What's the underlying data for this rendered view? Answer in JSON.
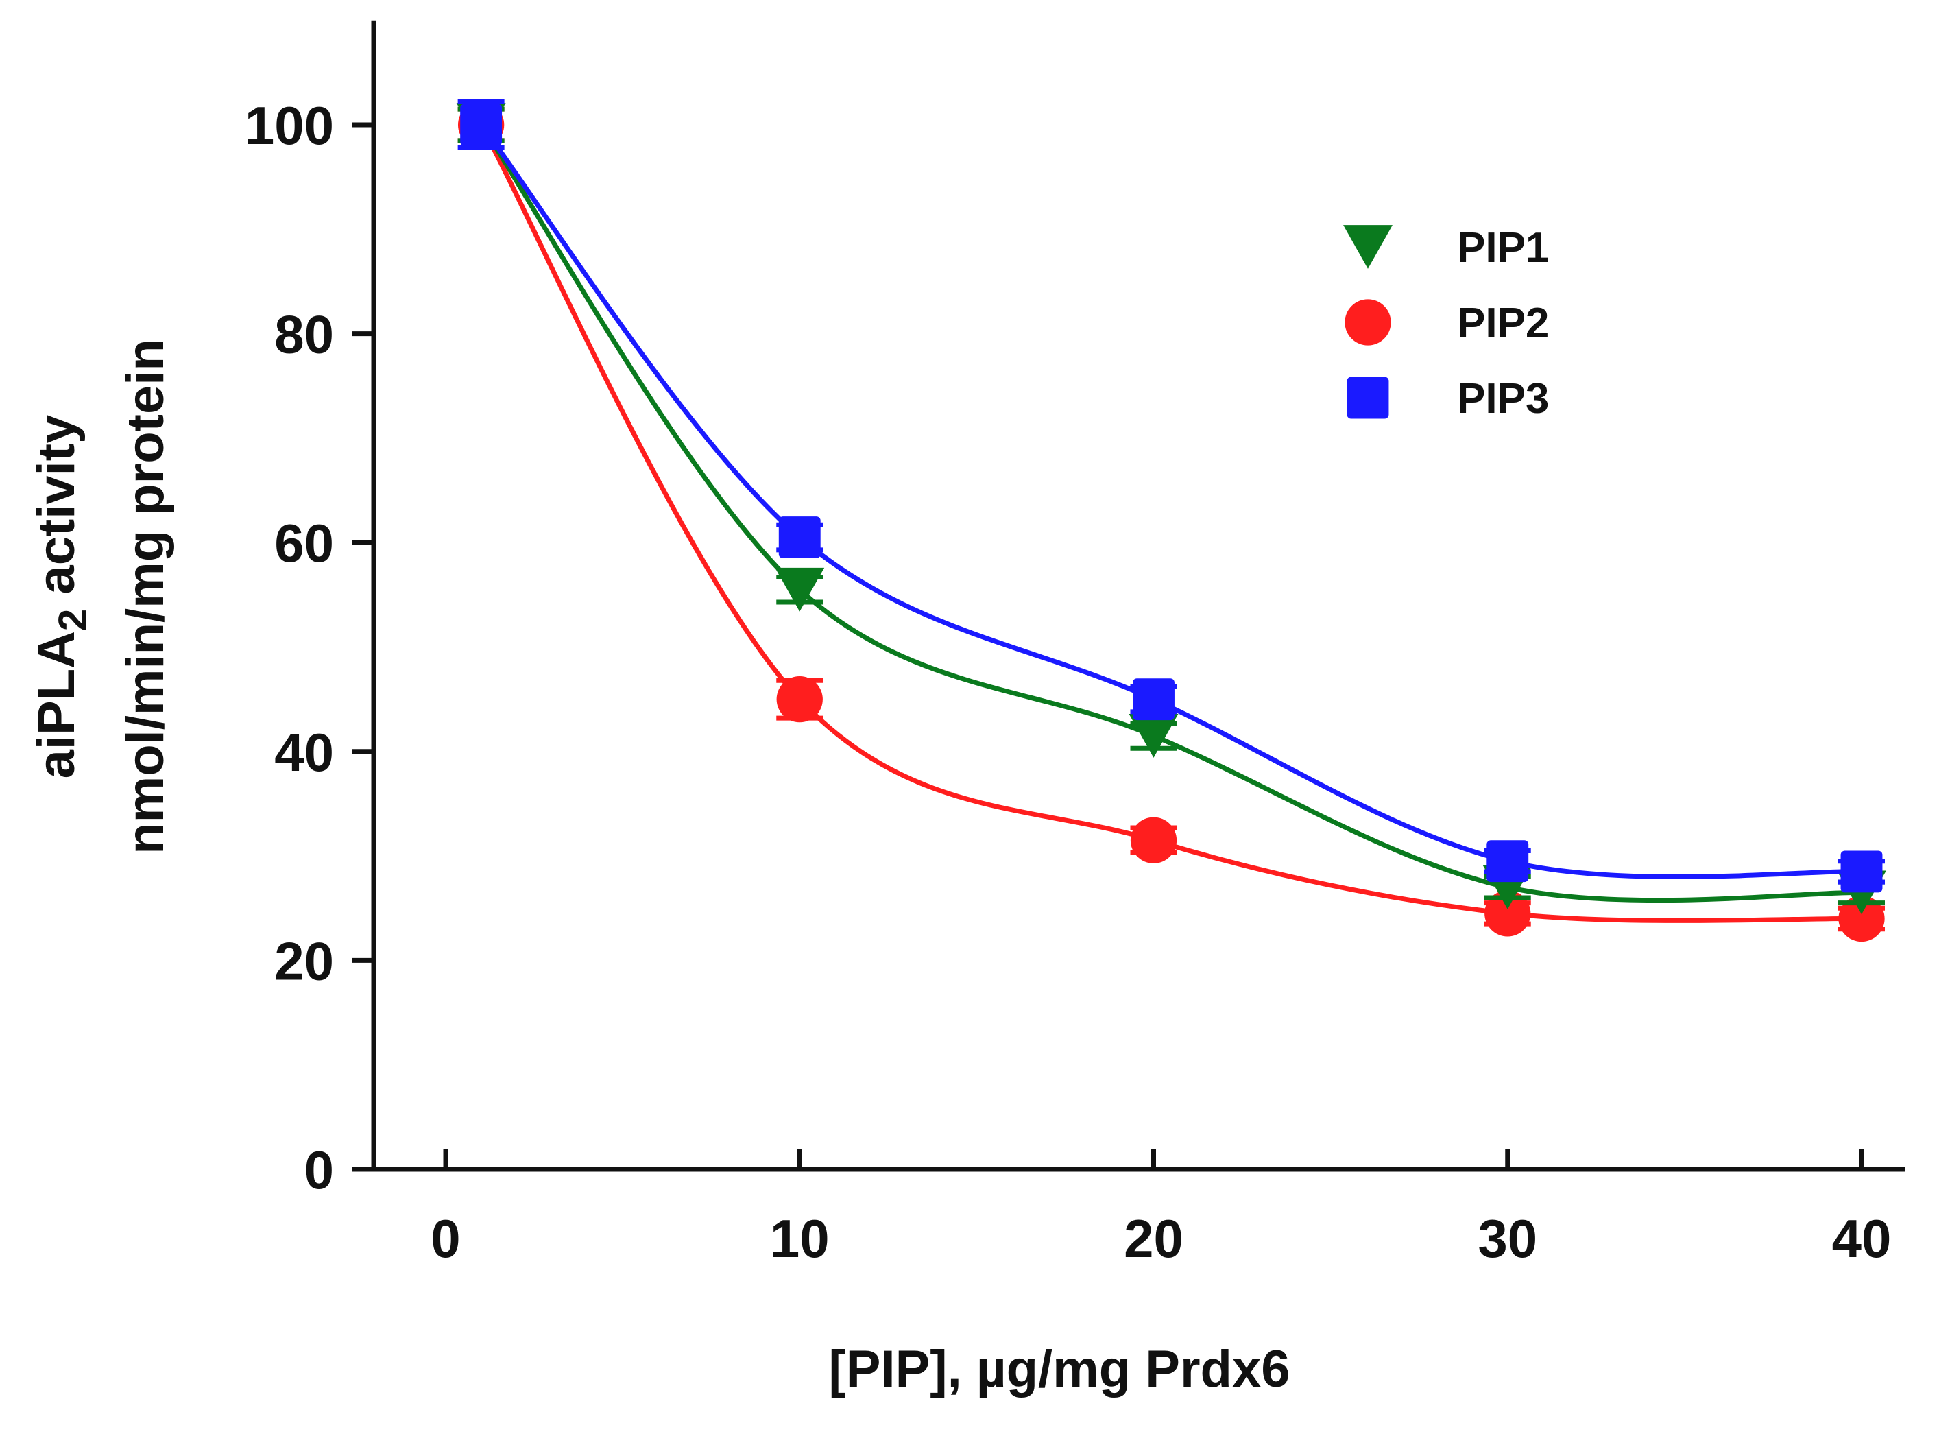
{
  "chart_data": {
    "type": "line",
    "x": [
      1,
      10,
      20,
      30,
      40
    ],
    "series": [
      {
        "name": "PIP1",
        "color": "#0a7a1e",
        "marker": "triangle-down",
        "values": [
          100,
          55.5,
          41.5,
          27,
          26.5
        ],
        "errors": [
          1.5,
          1.2,
          1.2,
          1.0,
          1.0
        ]
      },
      {
        "name": "PIP2",
        "color": "#ff1e1e",
        "marker": "circle",
        "values": [
          100,
          45,
          31.5,
          24.5,
          24
        ],
        "errors": [
          1.5,
          1.8,
          1.2,
          1.0,
          1.0
        ]
      },
      {
        "name": "PIP3",
        "color": "#1a1aff",
        "marker": "square",
        "values": [
          100,
          60.5,
          45,
          29.5,
          28.5
        ],
        "errors": [
          2.2,
          1.2,
          1.2,
          1.0,
          1.0
        ]
      }
    ],
    "xlim": [
      -2,
      42
    ],
    "ylim": [
      0,
      110
    ],
    "xticks": [
      0,
      10,
      20,
      30,
      40
    ],
    "yticks": [
      0,
      20,
      40,
      60,
      80,
      100
    ],
    "xtick_labels": [
      "0",
      "10",
      "20",
      "30",
      "40"
    ],
    "ytick_labels": [
      "0",
      "20",
      "40",
      "60",
      "80",
      "100"
    ],
    "xlabel": "[PIP], µg/mg Prdx6",
    "ylabel_line1_prefix": "aiPLA",
    "ylabel_line1_subscript": "2",
    "ylabel_line1_suffix": " activity",
    "ylabel_line2": "nmol/min/mg protein",
    "legend_position": "top-right",
    "grid": false
  }
}
